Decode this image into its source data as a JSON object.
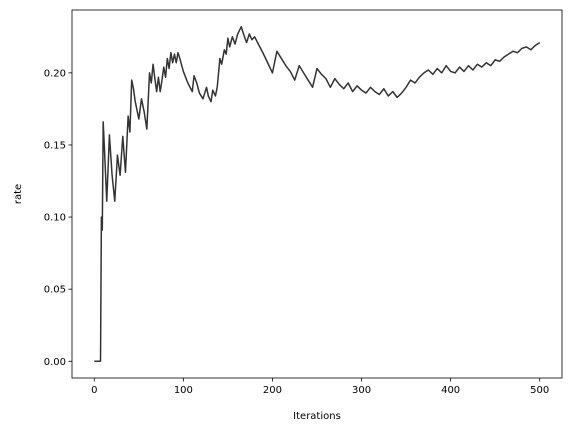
{
  "chart_data": {
    "type": "line",
    "title": "",
    "xlabel": "Iterations",
    "ylabel": "rate",
    "xlim": [
      -25,
      525
    ],
    "ylim": [
      -0.0116,
      0.2436
    ],
    "xticks": [
      0,
      100,
      200,
      300,
      400,
      500
    ],
    "xtick_labels": [
      "0",
      "100",
      "200",
      "300",
      "400",
      "500"
    ],
    "yticks": [
      0.0,
      0.05,
      0.1,
      0.15,
      0.2
    ],
    "ytick_labels": [
      "0.00",
      "0.05",
      "0.10",
      "0.15",
      "0.20"
    ],
    "grid": false,
    "series": [
      {
        "color": "#333333",
        "x": [
          0,
          7,
          8,
          9,
          10,
          11,
          14,
          17,
          20,
          23,
          26,
          29,
          32,
          35,
          38,
          40,
          42,
          44,
          46,
          50,
          53,
          56,
          59,
          62,
          64,
          66,
          68,
          70,
          72,
          74,
          76,
          78,
          80,
          82,
          84,
          86,
          88,
          90,
          92,
          94,
          96,
          100,
          105,
          110,
          112,
          115,
          118,
          122,
          126,
          128,
          131,
          133,
          136,
          138,
          141,
          143,
          146,
          148,
          150,
          152,
          155,
          158,
          161,
          165,
          168,
          171,
          174,
          177,
          180,
          185,
          190,
          200,
          205,
          210,
          215,
          220,
          225,
          230,
          235,
          240,
          245,
          250,
          255,
          260,
          265,
          270,
          275,
          280,
          285,
          290,
          295,
          300,
          305,
          310,
          315,
          320,
          325,
          330,
          335,
          340,
          345,
          350,
          355,
          360,
          365,
          370,
          375,
          380,
          385,
          390,
          395,
          400,
          405,
          410,
          415,
          420,
          425,
          430,
          435,
          440,
          445,
          450,
          455,
          460,
          465,
          470,
          475,
          480,
          485,
          490,
          495,
          500
        ],
        "y": [
          0.0,
          0.0,
          0.1,
          0.091,
          0.166,
          0.153,
          0.111,
          0.157,
          0.129,
          0.111,
          0.143,
          0.129,
          0.156,
          0.131,
          0.17,
          0.159,
          0.195,
          0.189,
          0.18,
          0.168,
          0.182,
          0.173,
          0.161,
          0.2,
          0.193,
          0.206,
          0.196,
          0.187,
          0.197,
          0.187,
          0.195,
          0.204,
          0.197,
          0.21,
          0.203,
          0.214,
          0.207,
          0.213,
          0.207,
          0.214,
          0.21,
          0.201,
          0.193,
          0.187,
          0.198,
          0.193,
          0.186,
          0.182,
          0.19,
          0.184,
          0.18,
          0.188,
          0.184,
          0.19,
          0.21,
          0.206,
          0.216,
          0.213,
          0.224,
          0.218,
          0.225,
          0.22,
          0.227,
          0.232,
          0.226,
          0.221,
          0.227,
          0.223,
          0.225,
          0.219,
          0.213,
          0.2,
          0.215,
          0.21,
          0.205,
          0.201,
          0.195,
          0.205,
          0.2,
          0.195,
          0.19,
          0.203,
          0.199,
          0.196,
          0.19,
          0.196,
          0.192,
          0.189,
          0.193,
          0.187,
          0.191,
          0.188,
          0.186,
          0.19,
          0.187,
          0.185,
          0.189,
          0.184,
          0.187,
          0.183,
          0.186,
          0.19,
          0.195,
          0.193,
          0.197,
          0.2,
          0.202,
          0.199,
          0.203,
          0.2,
          0.205,
          0.201,
          0.2,
          0.204,
          0.201,
          0.205,
          0.202,
          0.206,
          0.204,
          0.207,
          0.205,
          0.209,
          0.208,
          0.211,
          0.213,
          0.215,
          0.214,
          0.217,
          0.218,
          0.216,
          0.219,
          0.221
        ]
      }
    ]
  }
}
